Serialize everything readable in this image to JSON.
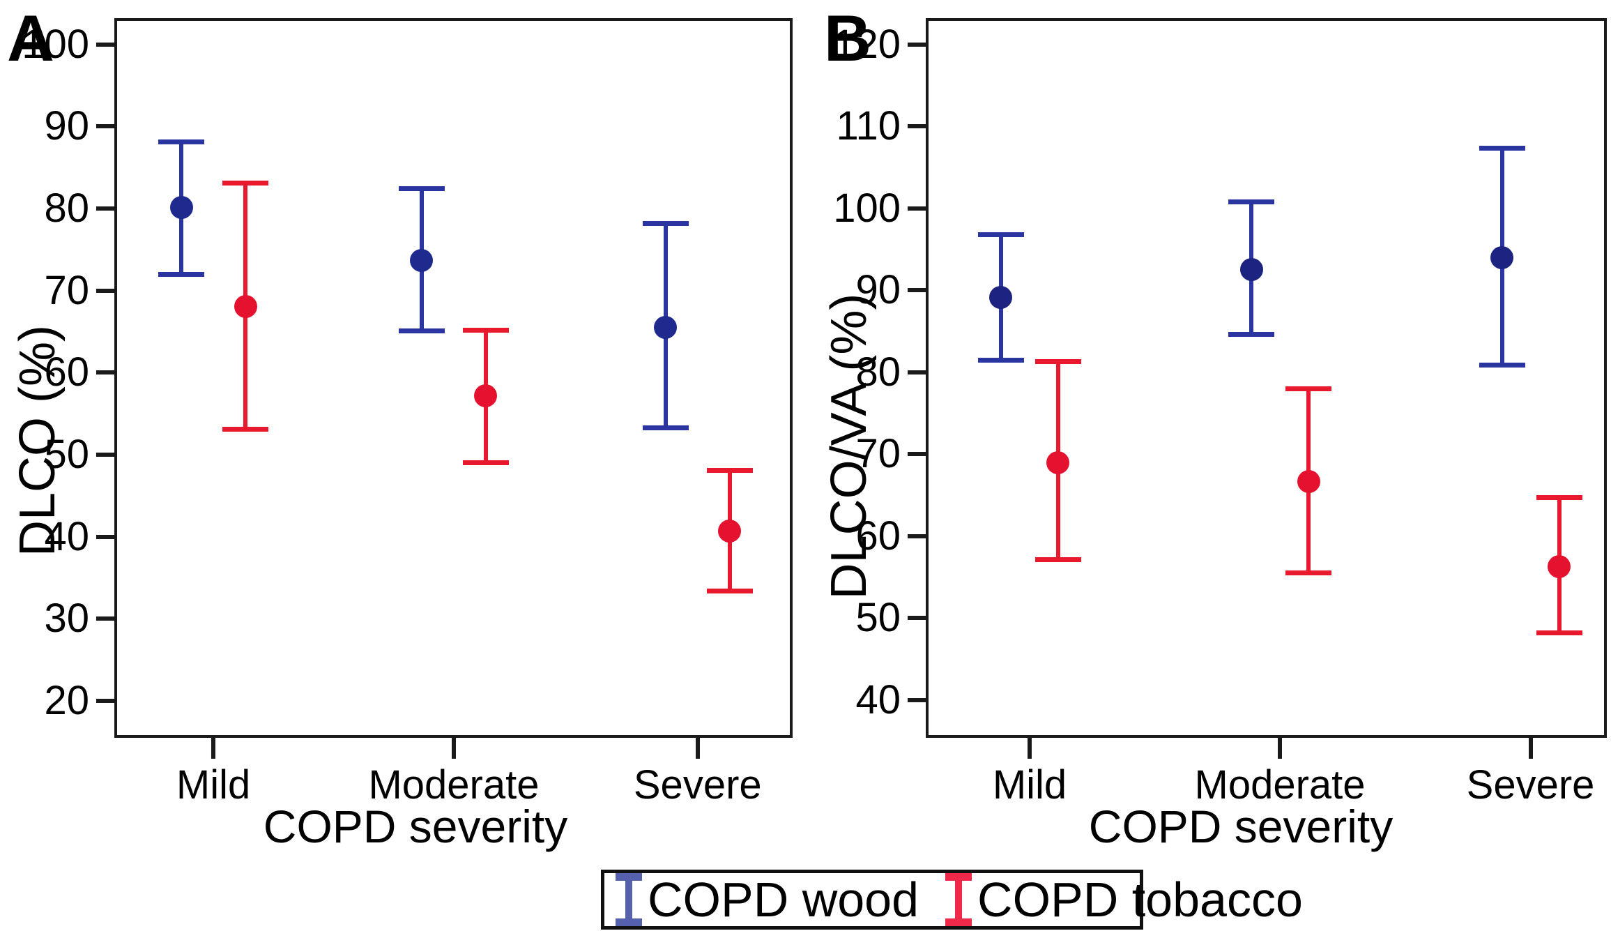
{
  "chart_data": {
    "type": "scatter",
    "subtype": "point-with-error-bars",
    "grid": false,
    "legend_position": "bottom-center",
    "panels": [
      {
        "panel_label": "A",
        "ylabel": "DLCO (%)",
        "xlabel": "COPD severity",
        "categories": [
          "Mild",
          "Moderate",
          "Severe"
        ],
        "yticks": [
          100,
          90,
          80,
          70,
          60,
          50,
          40,
          30,
          20
        ],
        "ylim": [
          15.5,
          103.2
        ],
        "series": [
          {
            "name": "COPD wood",
            "line_color": "#2a35a2",
            "marker_color": "#1f2a8e",
            "means": [
              80.1,
              73.7,
              65.5
            ],
            "ci_low": [
              72.0,
              65.1,
              53.3
            ],
            "ci_high": [
              88.1,
              82.4,
              78.2
            ]
          },
          {
            "name": "COPD tobacco",
            "line_color": "#e8192c",
            "marker_color": "#e4122f",
            "means": [
              68.1,
              57.2,
              40.7
            ],
            "ci_low": [
              53.1,
              49.0,
              33.4
            ],
            "ci_high": [
              83.1,
              65.2,
              48.1
            ]
          }
        ]
      },
      {
        "panel_label": "B",
        "ylabel": "DLCO/VA (%)",
        "xlabel": "COPD severity",
        "categories": [
          "Mild",
          "Moderate",
          "Severe"
        ],
        "yticks": [
          120,
          110,
          100,
          90,
          80,
          70,
          60,
          50,
          40
        ],
        "ylim": [
          35.4,
          123.2
        ],
        "series": [
          {
            "name": "COPD wood",
            "line_color": "#2a35a2",
            "marker_color": "#1c2380",
            "means": [
              89.1,
              92.5,
              94.0
            ],
            "ci_low": [
              81.5,
              84.6,
              80.9
            ],
            "ci_high": [
              96.8,
              100.8,
              107.3
            ]
          },
          {
            "name": "COPD tobacco",
            "line_color": "#e8192c",
            "marker_color": "#e4122f",
            "means": [
              69.0,
              66.7,
              56.3
            ],
            "ci_low": [
              57.1,
              55.5,
              48.2
            ],
            "ci_high": [
              81.3,
              78.0,
              64.7
            ]
          }
        ]
      }
    ],
    "legend": {
      "entries": [
        {
          "label": "COPD wood",
          "color": "#5661ad"
        },
        {
          "label": "COPD tobacco",
          "color": "#f0284a"
        }
      ]
    }
  }
}
